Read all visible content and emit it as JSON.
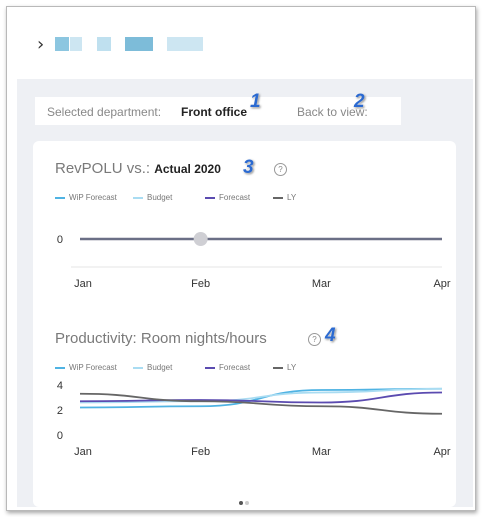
{
  "breadcrumb": {
    "chevron": "chevron-right-icon",
    "blocks": [
      {
        "color": "#8cc6e0"
      },
      {
        "color": "#cde6f2"
      },
      {
        "color": "#bfe0ef"
      },
      {
        "color": "#7dbcd9"
      },
      {
        "color": "#cde6f2"
      }
    ]
  },
  "selector": {
    "label": "Selected department:",
    "value": "Front office",
    "back_label": "Back to view:"
  },
  "badges": [
    "1",
    "2",
    "3",
    "4"
  ],
  "chart1": {
    "title_prefix": "RevPOLU vs.:",
    "comparison": "Actual 2020"
  },
  "chart2": {
    "title": "Productivity: Room nights/hours"
  },
  "legend": [
    {
      "name": "WiP Forecast",
      "color": "#4fb3e3"
    },
    {
      "name": "Budget",
      "color": "#a9dcf2"
    },
    {
      "name": "Forecast",
      "color": "#5b4bb0"
    },
    {
      "name": "LY",
      "color": "#666666"
    }
  ],
  "chart_data": [
    {
      "type": "line",
      "x": [
        "Jan",
        "Feb",
        "Mar",
        "Apr"
      ],
      "y_ticks": [
        "0"
      ],
      "series": [
        {
          "name": "LY",
          "values": [
            0,
            0,
            0,
            0
          ]
        }
      ],
      "highlight_point": {
        "x": "Feb",
        "y": 0
      }
    },
    {
      "type": "line",
      "x": [
        "Jan",
        "Feb",
        "Mar",
        "Apr"
      ],
      "y_ticks": [
        "4",
        "2",
        "0"
      ],
      "ylim": [
        0,
        4
      ],
      "series": [
        {
          "name": "WiP Forecast",
          "values": [
            2.2,
            2.3,
            3.6,
            3.7
          ]
        },
        {
          "name": "Budget",
          "values": [
            2.6,
            2.7,
            3.4,
            3.7
          ]
        },
        {
          "name": "Forecast",
          "values": [
            2.7,
            2.8,
            2.6,
            3.4
          ]
        },
        {
          "name": "LY",
          "values": [
            3.3,
            2.7,
            2.3,
            1.7
          ]
        }
      ]
    }
  ],
  "pagination": {
    "pages": 2,
    "active": 1
  }
}
